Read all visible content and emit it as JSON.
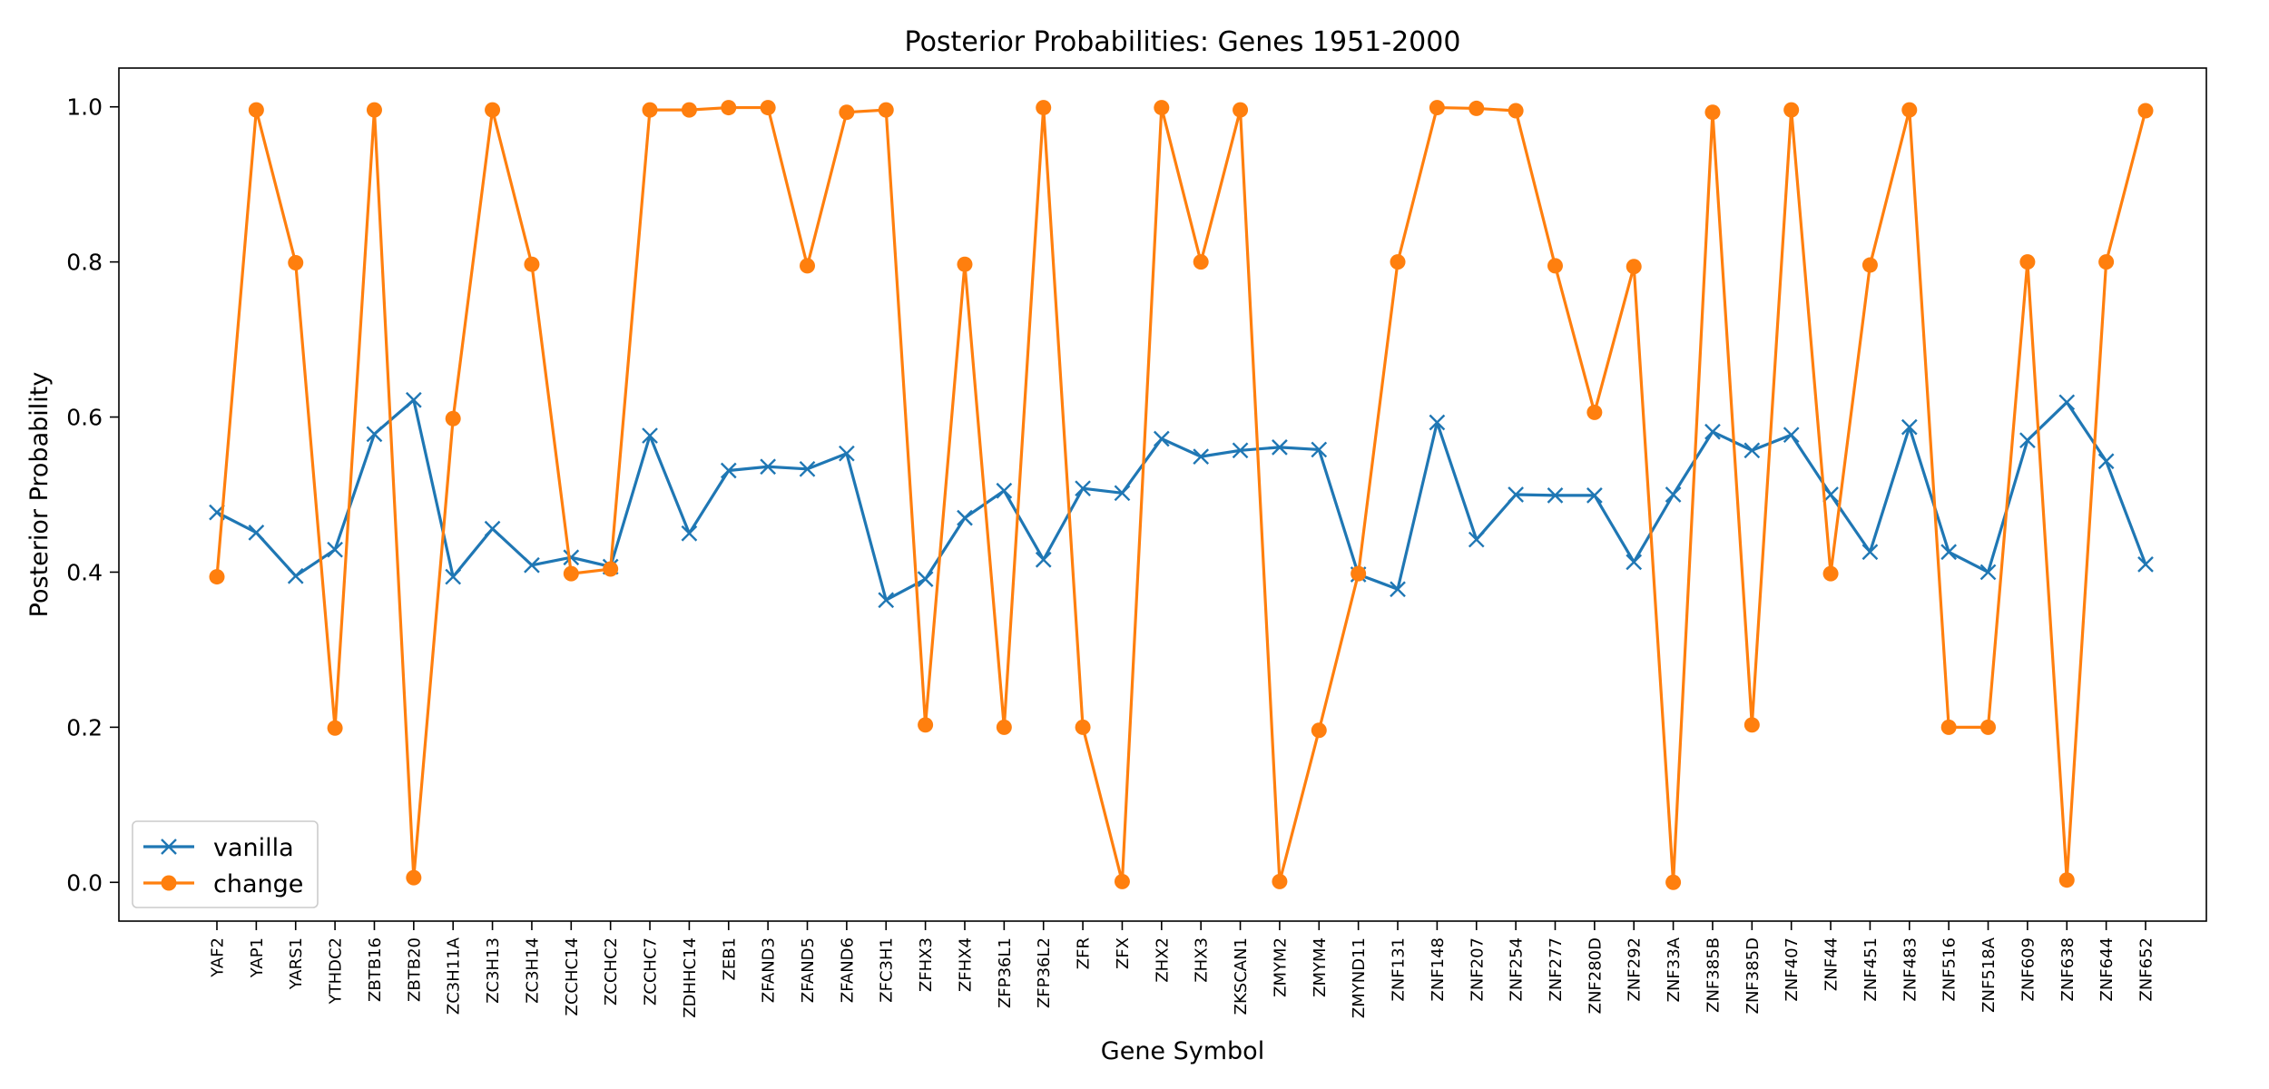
{
  "chart_data": {
    "type": "line",
    "title": "Posterior Probabilities: Genes 1951-2000",
    "xlabel": "Gene Symbol",
    "ylabel": "Posterior Probability",
    "ylim": [
      -0.05,
      1.05
    ],
    "yticks": [
      "0.0",
      "0.2",
      "0.4",
      "0.6",
      "0.8",
      "1.0"
    ],
    "yticks_values": [
      0.0,
      0.2,
      0.4,
      0.6,
      0.8,
      1.0
    ],
    "grid": false,
    "legend_position": "lower-left",
    "categories": [
      "YAF2",
      "YAP1",
      "YARS1",
      "YTHDC2",
      "ZBTB16",
      "ZBTB20",
      "ZC3H11A",
      "ZC3H13",
      "ZC3H14",
      "ZCCHC14",
      "ZCCHC2",
      "ZCCHC7",
      "ZDHHC14",
      "ZEB1",
      "ZFAND3",
      "ZFAND5",
      "ZFAND6",
      "ZFC3H1",
      "ZFHX3",
      "ZFHX4",
      "ZFP36L1",
      "ZFP36L2",
      "ZFR",
      "ZFX",
      "ZHX2",
      "ZHX3",
      "ZKSCAN1",
      "ZMYM2",
      "ZMYM4",
      "ZMYND11",
      "ZNF131",
      "ZNF148",
      "ZNF207",
      "ZNF254",
      "ZNF277",
      "ZNF280D",
      "ZNF292",
      "ZNF33A",
      "ZNF385B",
      "ZNF385D",
      "ZNF407",
      "ZNF44",
      "ZNF451",
      "ZNF483",
      "ZNF516",
      "ZNF518A",
      "ZNF609",
      "ZNF638",
      "ZNF644",
      "ZNF652"
    ],
    "series": [
      {
        "name": "vanilla",
        "color": "#1f77b4",
        "marker": "x",
        "values": [
          0.477,
          0.451,
          0.395,
          0.429,
          0.578,
          0.622,
          0.394,
          0.456,
          0.409,
          0.419,
          0.407,
          0.576,
          0.45,
          0.531,
          0.536,
          0.533,
          0.553,
          0.364,
          0.391,
          0.47,
          0.505,
          0.416,
          0.508,
          0.502,
          0.572,
          0.549,
          0.557,
          0.561,
          0.558,
          0.397,
          0.378,
          0.593,
          0.442,
          0.5,
          0.499,
          0.499,
          0.413,
          0.5,
          0.581,
          0.557,
          0.577,
          0.5,
          0.426,
          0.587,
          0.426,
          0.4,
          0.57,
          0.619,
          0.543,
          0.41
        ]
      },
      {
        "name": "change",
        "color": "#ff7f0e",
        "marker": "o",
        "values": [
          0.394,
          0.996,
          0.799,
          0.199,
          0.996,
          0.006,
          0.598,
          0.996,
          0.797,
          0.398,
          0.404,
          0.996,
          0.996,
          0.999,
          0.999,
          0.795,
          0.993,
          0.996,
          0.203,
          0.797,
          0.2,
          0.999,
          0.2,
          0.001,
          0.999,
          0.8,
          0.996,
          0.001,
          0.196,
          0.398,
          0.8,
          0.999,
          0.998,
          0.995,
          0.795,
          0.606,
          0.794,
          0.0,
          0.993,
          0.203,
          0.996,
          0.398,
          0.796,
          0.996,
          0.2,
          0.2,
          0.8,
          0.003,
          0.8,
          0.995
        ]
      }
    ]
  }
}
